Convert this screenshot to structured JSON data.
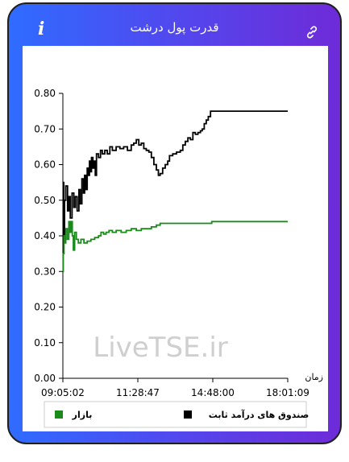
{
  "header": {
    "title": "قدرت پول درشت",
    "info_icon": "info-icon",
    "link_icon": "link-icon"
  },
  "watermark": "LiveTSE.ir",
  "colors": {
    "frame_start": "#2f6cff",
    "frame_end": "#6e2bd8",
    "series_fund": "#000000",
    "series_market": "#1a8a1a"
  },
  "chart_data": {
    "type": "line",
    "title": "",
    "xlabel": "زمان",
    "ylabel": "",
    "ylim": [
      0,
      0.8
    ],
    "yticks": [
      "0.00",
      "0.10",
      "0.20",
      "0.30",
      "0.40",
      "0.50",
      "0.60",
      "0.70",
      "0.80"
    ],
    "xticks": [
      "09:05:02",
      "11:28:47",
      "14:48:00",
      "18:01:09"
    ],
    "xlim_hours": [
      9.0839,
      18.0192
    ],
    "grid": false,
    "legend_position": "bottom",
    "series": [
      {
        "name": "صندوق های درآمد ثابت",
        "color": "#000000",
        "points": [
          [
            9.0839,
            0.55
          ],
          [
            9.12,
            0.4
          ],
          [
            9.15,
            0.5
          ],
          [
            9.2,
            0.54
          ],
          [
            9.27,
            0.47
          ],
          [
            9.32,
            0.51
          ],
          [
            9.38,
            0.45
          ],
          [
            9.45,
            0.52
          ],
          [
            9.52,
            0.48
          ],
          [
            9.58,
            0.51
          ],
          [
            9.65,
            0.47
          ],
          [
            9.72,
            0.53
          ],
          [
            9.78,
            0.49
          ],
          [
            9.84,
            0.56
          ],
          [
            9.9,
            0.52
          ],
          [
            9.95,
            0.57
          ],
          [
            10.0,
            0.53
          ],
          [
            10.05,
            0.59
          ],
          [
            10.1,
            0.57
          ],
          [
            10.14,
            0.61
          ],
          [
            10.18,
            0.58
          ],
          [
            10.22,
            0.62
          ],
          [
            10.28,
            0.59
          ],
          [
            10.33,
            0.61
          ],
          [
            10.37,
            0.57
          ],
          [
            10.42,
            0.63
          ],
          [
            10.5,
            0.62
          ],
          [
            10.58,
            0.64
          ],
          [
            10.65,
            0.63
          ],
          [
            10.75,
            0.64
          ],
          [
            10.85,
            0.63
          ],
          [
            10.95,
            0.65
          ],
          [
            11.05,
            0.64
          ],
          [
            11.2,
            0.65
          ],
          [
            11.35,
            0.645
          ],
          [
            11.5,
            0.65
          ],
          [
            11.65,
            0.64
          ],
          [
            11.8,
            0.655
          ],
          [
            11.9,
            0.66
          ],
          [
            12.0,
            0.67
          ],
          [
            12.1,
            0.655
          ],
          [
            12.2,
            0.66
          ],
          [
            12.3,
            0.645
          ],
          [
            12.4,
            0.64
          ],
          [
            12.5,
            0.635
          ],
          [
            12.6,
            0.62
          ],
          [
            12.7,
            0.6
          ],
          [
            12.8,
            0.585
          ],
          [
            12.88,
            0.57
          ],
          [
            12.95,
            0.575
          ],
          [
            13.05,
            0.59
          ],
          [
            13.15,
            0.6
          ],
          [
            13.25,
            0.61
          ],
          [
            13.32,
            0.625
          ],
          [
            13.45,
            0.63
          ],
          [
            13.6,
            0.635
          ],
          [
            13.75,
            0.64
          ],
          [
            13.85,
            0.655
          ],
          [
            13.95,
            0.665
          ],
          [
            14.05,
            0.675
          ],
          [
            14.15,
            0.67
          ],
          [
            14.25,
            0.69
          ],
          [
            14.35,
            0.685
          ],
          [
            14.45,
            0.69
          ],
          [
            14.55,
            0.695
          ],
          [
            14.62,
            0.7
          ],
          [
            14.7,
            0.715
          ],
          [
            14.78,
            0.725
          ],
          [
            14.86,
            0.735
          ],
          [
            14.95,
            0.75
          ],
          [
            15.3,
            0.75
          ],
          [
            16.0,
            0.75
          ],
          [
            17.0,
            0.75
          ],
          [
            18.0192,
            0.75
          ]
        ]
      },
      {
        "name": "بازار",
        "color": "#1a8a1a",
        "points": [
          [
            9.0839,
            0.3
          ],
          [
            9.1,
            0.35
          ],
          [
            9.13,
            0.4
          ],
          [
            9.16,
            0.38
          ],
          [
            9.2,
            0.42
          ],
          [
            9.26,
            0.39
          ],
          [
            9.32,
            0.44
          ],
          [
            9.37,
            0.41
          ],
          [
            9.42,
            0.44
          ],
          [
            9.46,
            0.4
          ],
          [
            9.5,
            0.36
          ],
          [
            9.55,
            0.41
          ],
          [
            9.62,
            0.39
          ],
          [
            9.7,
            0.38
          ],
          [
            9.8,
            0.39
          ],
          [
            9.92,
            0.38
          ],
          [
            10.05,
            0.385
          ],
          [
            10.2,
            0.39
          ],
          [
            10.35,
            0.395
          ],
          [
            10.5,
            0.4
          ],
          [
            10.6,
            0.41
          ],
          [
            10.7,
            0.405
          ],
          [
            10.8,
            0.41
          ],
          [
            10.92,
            0.415
          ],
          [
            11.05,
            0.41
          ],
          [
            11.2,
            0.415
          ],
          [
            11.4,
            0.41
          ],
          [
            11.6,
            0.415
          ],
          [
            11.8,
            0.42
          ],
          [
            12.0,
            0.415
          ],
          [
            12.2,
            0.42
          ],
          [
            12.4,
            0.42
          ],
          [
            12.6,
            0.425
          ],
          [
            12.8,
            0.43
          ],
          [
            12.95,
            0.435
          ],
          [
            13.1,
            0.435
          ],
          [
            13.5,
            0.435
          ],
          [
            14.0,
            0.435
          ],
          [
            14.5,
            0.435
          ],
          [
            15.0,
            0.44
          ],
          [
            16.0,
            0.44
          ],
          [
            17.0,
            0.44
          ],
          [
            18.0192,
            0.44
          ]
        ]
      }
    ]
  }
}
